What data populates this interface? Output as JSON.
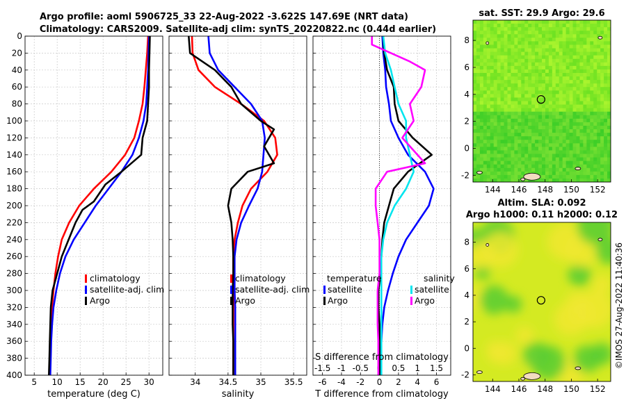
{
  "title": {
    "line1": "Argo profile: aoml 5906725_33 22-Aug-2022 -3.622S 147.69E (NRT data)",
    "line2": "Climatology: CARS2009. Satellite-adj clim: synTS_20220822.nc (0.44d earlier)"
  },
  "colors": {
    "climatology": "#ff0000",
    "satellite": "#0000ff",
    "argo": "#000000",
    "sal_satellite": "#00e5ee",
    "sal_argo": "#ff00ff"
  },
  "depth_axis": {
    "ylim": [
      0,
      400
    ],
    "ticks": [
      "0",
      "20",
      "40",
      "60",
      "80",
      "100",
      "120",
      "140",
      "160",
      "180",
      "200",
      "220",
      "240",
      "260",
      "280",
      "300",
      "320",
      "340",
      "360",
      "380",
      "400"
    ]
  },
  "chart_data": [
    {
      "type": "line",
      "name": "temperature",
      "xlabel": "temperature (deg C)",
      "xlim": [
        3,
        33
      ],
      "xticks": [
        "5",
        "10",
        "15",
        "20",
        "25",
        "30"
      ],
      "legend": [
        "climatology",
        "satellite-adj. clim",
        "Argo"
      ],
      "series": [
        {
          "name": "climatology",
          "points": [
            [
              29.8,
              0
            ],
            [
              29.6,
              20
            ],
            [
              29.3,
              40
            ],
            [
              29.0,
              60
            ],
            [
              28.6,
              80
            ],
            [
              27.8,
              100
            ],
            [
              26.8,
              120
            ],
            [
              24.8,
              140
            ],
            [
              21.8,
              160
            ],
            [
              18.0,
              180
            ],
            [
              14.8,
              200
            ],
            [
              12.6,
              220
            ],
            [
              11.0,
              240
            ],
            [
              10.2,
              260
            ],
            [
              9.6,
              280
            ],
            [
              9.2,
              300
            ],
            [
              8.9,
              320
            ],
            [
              8.7,
              340
            ],
            [
              8.6,
              360
            ],
            [
              8.5,
              380
            ],
            [
              8.4,
              400
            ]
          ]
        },
        {
          "name": "satellite-adj. clim",
          "points": [
            [
              30.0,
              0
            ],
            [
              29.9,
              20
            ],
            [
              29.8,
              40
            ],
            [
              29.6,
              60
            ],
            [
              29.4,
              80
            ],
            [
              28.8,
              100
            ],
            [
              27.8,
              120
            ],
            [
              26.4,
              140
            ],
            [
              24.0,
              160
            ],
            [
              21.2,
              180
            ],
            [
              18.4,
              200
            ],
            [
              16.0,
              220
            ],
            [
              13.6,
              240
            ],
            [
              11.8,
              260
            ],
            [
              10.6,
              280
            ],
            [
              9.8,
              300
            ],
            [
              9.2,
              320
            ],
            [
              8.9,
              340
            ],
            [
              8.7,
              360
            ],
            [
              8.6,
              380
            ],
            [
              8.5,
              400
            ]
          ]
        },
        {
          "name": "Argo",
          "points": [
            [
              30.2,
              0
            ],
            [
              30.1,
              20
            ],
            [
              30.0,
              40
            ],
            [
              30.0,
              60
            ],
            [
              29.8,
              80
            ],
            [
              29.6,
              100
            ],
            [
              28.6,
              120
            ],
            [
              28.3,
              140
            ],
            [
              24.0,
              160
            ],
            [
              20.5,
              175
            ],
            [
              18.0,
              195
            ],
            [
              15.5,
              205
            ],
            [
              14.0,
              220
            ],
            [
              12.5,
              240
            ],
            [
              11.0,
              260
            ],
            [
              10.0,
              280
            ],
            [
              9.0,
              300
            ],
            [
              8.6,
              320
            ],
            [
              8.5,
              340
            ],
            [
              8.4,
              360
            ],
            [
              8.3,
              380
            ],
            [
              8.2,
              400
            ]
          ]
        }
      ]
    },
    {
      "type": "line",
      "name": "salinity",
      "xlabel": "salinity",
      "xlim": [
        33.6,
        35.7
      ],
      "xticks": [
        "34",
        "34.5",
        "35",
        "35.5"
      ],
      "legend": [
        "climatology",
        "satellite-adj. clim",
        "Argo"
      ],
      "series": [
        {
          "name": "climatology",
          "points": [
            [
              33.95,
              0
            ],
            [
              33.96,
              20
            ],
            [
              34.05,
              40
            ],
            [
              34.3,
              60
            ],
            [
              34.7,
              80
            ],
            [
              35.05,
              100
            ],
            [
              35.22,
              120
            ],
            [
              35.25,
              140
            ],
            [
              35.1,
              160
            ],
            [
              34.85,
              180
            ],
            [
              34.72,
              200
            ],
            [
              34.65,
              220
            ],
            [
              34.6,
              240
            ],
            [
              34.58,
              260
            ],
            [
              34.58,
              280
            ],
            [
              34.58,
              300
            ],
            [
              34.58,
              320
            ],
            [
              34.58,
              340
            ],
            [
              34.58,
              360
            ],
            [
              34.58,
              380
            ],
            [
              34.58,
              400
            ]
          ]
        },
        {
          "name": "satellite-adj. clim",
          "points": [
            [
              34.2,
              0
            ],
            [
              34.22,
              20
            ],
            [
              34.35,
              40
            ],
            [
              34.6,
              60
            ],
            [
              34.85,
              80
            ],
            [
              35.02,
              100
            ],
            [
              35.06,
              120
            ],
            [
              35.04,
              140
            ],
            [
              35.02,
              160
            ],
            [
              34.95,
              180
            ],
            [
              34.82,
              200
            ],
            [
              34.7,
              220
            ],
            [
              34.63,
              240
            ],
            [
              34.6,
              260
            ],
            [
              34.6,
              280
            ],
            [
              34.6,
              300
            ],
            [
              34.61,
              320
            ],
            [
              34.61,
              340
            ],
            [
              34.61,
              360
            ],
            [
              34.61,
              380
            ],
            [
              34.61,
              400
            ]
          ]
        },
        {
          "name": "Argo",
          "points": [
            [
              33.9,
              0
            ],
            [
              33.92,
              20
            ],
            [
              34.3,
              40
            ],
            [
              34.55,
              60
            ],
            [
              34.7,
              80
            ],
            [
              35.0,
              100
            ],
            [
              35.2,
              110
            ],
            [
              35.05,
              130
            ],
            [
              35.2,
              150
            ],
            [
              34.8,
              160
            ],
            [
              34.55,
              180
            ],
            [
              34.5,
              200
            ],
            [
              34.55,
              220
            ],
            [
              34.57,
              240
            ],
            [
              34.58,
              260
            ],
            [
              34.58,
              280
            ],
            [
              34.57,
              300
            ],
            [
              34.57,
              320
            ],
            [
              34.57,
              340
            ],
            [
              34.58,
              360
            ],
            [
              34.58,
              380
            ],
            [
              34.58,
              400
            ]
          ]
        }
      ]
    },
    {
      "type": "line",
      "name": "difference",
      "xlabel": "T difference from climatology",
      "xlabel_top": "S difference from climatology",
      "xlim": [
        -7,
        7.5
      ],
      "xticks": [
        "-6",
        "-4",
        "-2",
        "0",
        "2",
        "4",
        "6"
      ],
      "top_ticks": [
        "-1.5",
        "-1",
        "-0.5",
        "0",
        "0.5",
        "1",
        "1.5"
      ],
      "legend_headers": [
        "temperature",
        "salinity"
      ],
      "legend_temperature": [
        "satellite",
        "Argo"
      ],
      "legend_salinity": [
        "satellite",
        "Argo"
      ],
      "series": [
        {
          "name": "temperature satellite",
          "points": [
            [
              0.3,
              0
            ],
            [
              0.4,
              20
            ],
            [
              0.6,
              40
            ],
            [
              0.7,
              60
            ],
            [
              1.0,
              80
            ],
            [
              1.2,
              100
            ],
            [
              2.0,
              120
            ],
            [
              3.0,
              140
            ],
            [
              4.8,
              160
            ],
            [
              5.7,
              180
            ],
            [
              5.2,
              200
            ],
            [
              4.0,
              220
            ],
            [
              2.8,
              240
            ],
            [
              2.0,
              260
            ],
            [
              1.4,
              280
            ],
            [
              0.9,
              300
            ],
            [
              0.5,
              320
            ],
            [
              0.3,
              340
            ],
            [
              0.2,
              360
            ],
            [
              0.1,
              380
            ],
            [
              0.1,
              400
            ]
          ]
        },
        {
          "name": "temperature Argo",
          "points": [
            [
              0.4,
              0
            ],
            [
              0.5,
              20
            ],
            [
              0.8,
              40
            ],
            [
              1.5,
              60
            ],
            [
              1.6,
              80
            ],
            [
              2.0,
              100
            ],
            [
              3.5,
              120
            ],
            [
              5.5,
              140
            ],
            [
              3.0,
              160
            ],
            [
              1.5,
              180
            ],
            [
              1.0,
              200
            ],
            [
              0.5,
              220
            ],
            [
              0.3,
              240
            ],
            [
              0.2,
              260
            ],
            [
              0.1,
              280
            ],
            [
              -0.1,
              300
            ],
            [
              -0.1,
              320
            ],
            [
              0,
              340
            ],
            [
              0,
              360
            ],
            [
              0,
              380
            ],
            [
              0,
              400
            ]
          ]
        },
        {
          "name": "salinity satellite",
          "points": [
            [
              0.1,
              0
            ],
            [
              0.15,
              20
            ],
            [
              0.3,
              40
            ],
            [
              0.4,
              60
            ],
            [
              0.5,
              80
            ],
            [
              0.7,
              100
            ],
            [
              0.7,
              120
            ],
            [
              0.8,
              140
            ],
            [
              0.9,
              160
            ],
            [
              0.7,
              180
            ],
            [
              0.4,
              200
            ],
            [
              0.2,
              220
            ],
            [
              0.1,
              240
            ],
            [
              0.05,
              260
            ],
            [
              0.05,
              280
            ],
            [
              0.05,
              300
            ],
            [
              0.05,
              320
            ],
            [
              0.05,
              340
            ],
            [
              0.05,
              360
            ],
            [
              0.05,
              380
            ],
            [
              0.05,
              400
            ]
          ]
        },
        {
          "name": "salinity Argo",
          "points": [
            [
              -0.2,
              0
            ],
            [
              -0.2,
              10
            ],
            [
              0.8,
              30
            ],
            [
              1.2,
              40
            ],
            [
              1.1,
              60
            ],
            [
              0.8,
              80
            ],
            [
              0.9,
              100
            ],
            [
              0.6,
              120
            ],
            [
              1.2,
              150
            ],
            [
              0.2,
              160
            ],
            [
              -0.1,
              180
            ],
            [
              -0.1,
              200
            ],
            [
              -0.05,
              220
            ],
            [
              0,
              240
            ],
            [
              0,
              260
            ],
            [
              0,
              280
            ],
            [
              -0.05,
              300
            ],
            [
              -0.05,
              320
            ],
            [
              -0.05,
              340
            ],
            [
              -0.03,
              360
            ],
            [
              -0.03,
              380
            ],
            [
              -0.03,
              400
            ]
          ]
        }
      ]
    },
    {
      "type": "heatmap",
      "name": "sst-map",
      "title": "sat. SST: 29.9 Argo: 29.6",
      "xticks": [
        "144",
        "146",
        "148",
        "150",
        "152"
      ],
      "yticks": [
        "-2",
        "0",
        "2",
        "4",
        "6",
        "8"
      ],
      "xlim": [
        142.5,
        153
      ],
      "ylim": [
        -2.5,
        9.5
      ],
      "marker": {
        "lon": 147.69,
        "lat": 3.622
      }
    },
    {
      "type": "heatmap",
      "name": "sla-map",
      "title_line1": "Altim. SLA: 0.092",
      "title_line2": "Argo h1000: 0.11 h2000: 0.12",
      "xticks": [
        "144",
        "146",
        "148",
        "150",
        "152"
      ],
      "yticks": [
        "-2",
        "0",
        "2",
        "4",
        "6",
        "8"
      ],
      "xlim": [
        142.5,
        153
      ],
      "ylim": [
        -2.5,
        9.5
      ],
      "marker": {
        "lon": 147.69,
        "lat": 3.622
      }
    }
  ],
  "footer_stamp": "©IMOS 27-Aug-2022 11:40:36"
}
